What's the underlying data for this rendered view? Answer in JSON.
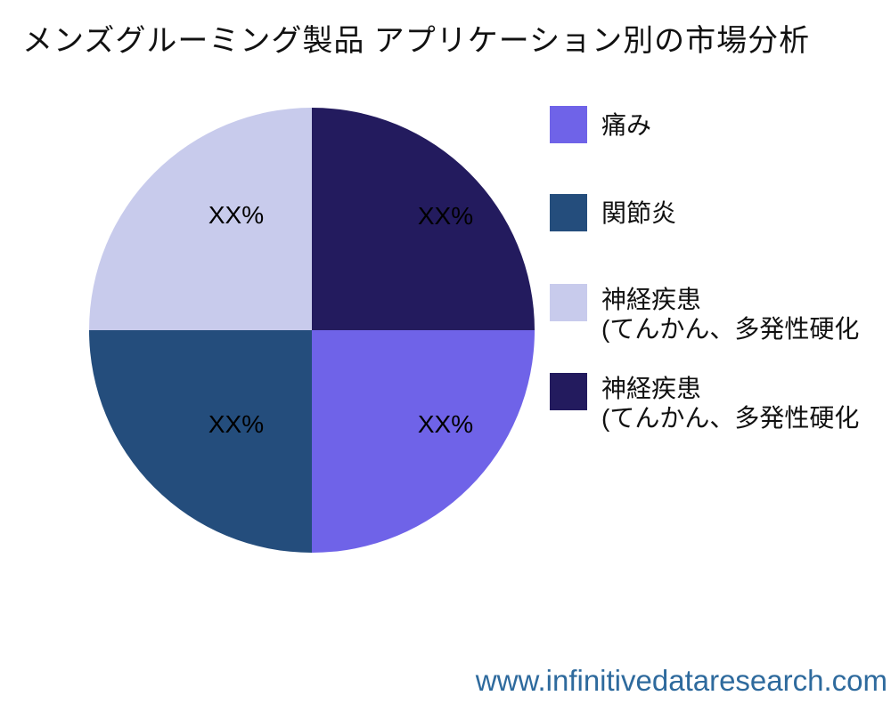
{
  "title": "メンズグルーミング製品 アプリケーション別の市場分析",
  "footer": {
    "url": "www.infinitivedataresearch.com",
    "color": "#2e6a9d"
  },
  "chart_data": {
    "type": "pie",
    "title": "メンズグルーミング製品 アプリケーション別の市場分析",
    "legend_position": "right",
    "slices": [
      {
        "label": "痛み",
        "label_line2": "",
        "value": 25,
        "value_label": "XX%",
        "color": "#6f63e8",
        "position": "bottom-right"
      },
      {
        "label": "関節炎",
        "label_line2": "",
        "value": 25,
        "value_label": "XX%",
        "color": "#244d7c",
        "position": "bottom-left"
      },
      {
        "label": "神経疾患",
        "label_line2": "(てんかん、多発性硬化",
        "value": 25,
        "value_label": "XX%",
        "color": "#c8cbec",
        "position": "top-left"
      },
      {
        "label": "神経疾患",
        "label_line2": "(てんかん、多発性硬化",
        "value": 25,
        "value_label": "XX%",
        "color": "#231b5e",
        "position": "top-right"
      }
    ],
    "render_order_clockwise_from_top": [
      3,
      0,
      1,
      2
    ]
  }
}
